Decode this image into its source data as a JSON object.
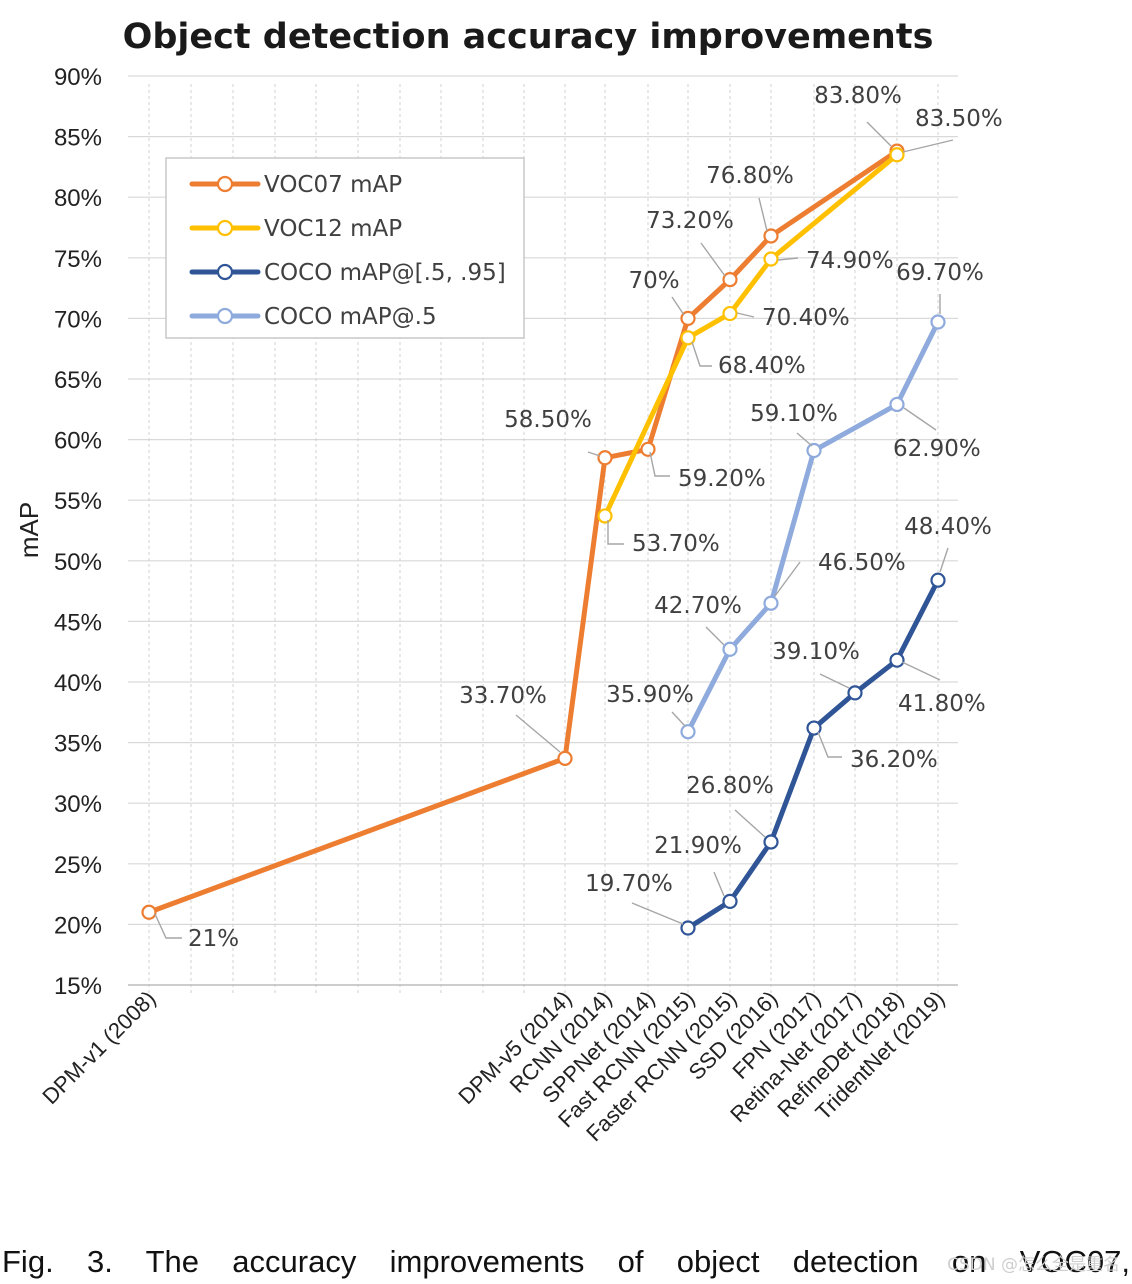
{
  "chart_data": {
    "type": "line",
    "title": "Object detection accuracy improvements",
    "xlabel": "",
    "ylabel": "mAP",
    "ylim": [
      15,
      90
    ],
    "yticks": [
      "15%",
      "20%",
      "25%",
      "30%",
      "35%",
      "40%",
      "45%",
      "50%",
      "55%",
      "60%",
      "65%",
      "70%",
      "75%",
      "80%",
      "85%",
      "90%"
    ],
    "x_range": [
      2008,
      2019
    ],
    "categories": [
      {
        "label": "DPM-v1 (2008)",
        "x": 2008
      },
      {
        "label": "DPM-v5 (2014)",
        "x": 2018.0
      },
      {
        "label": "RCNN (2014)",
        "x": 2019.0
      },
      {
        "label": "SPPNet (2014)",
        "x": 2020.1
      },
      {
        "label": "Fast RCNN (2015)",
        "x": 2021.0
      },
      {
        "label": "Faster RCNN (2015)",
        "x": 2022.0
      },
      {
        "label": "SSD (2016)",
        "x": 2023.0
      },
      {
        "label": "FPN (2017)",
        "x": 2024.0
      },
      {
        "label": "Retina-Net (2017)",
        "x": 2025.0
      },
      {
        "label": "RefineDet (2018)",
        "x": 2026.0
      },
      {
        "label": "TridentNet (2019)",
        "x": 2027.0
      }
    ],
    "series": [
      {
        "name": "VOC07 mAP",
        "color": "#ED7D31",
        "points": [
          {
            "cat": 0,
            "value": 21.0,
            "label": "21%"
          },
          {
            "cat": 1,
            "value": 33.7,
            "label": "33.70%"
          },
          {
            "cat": 2,
            "value": 58.5,
            "label": "58.50%"
          },
          {
            "cat": 3,
            "value": 59.2,
            "label": "59.20%"
          },
          {
            "cat": 4,
            "value": 70.0,
            "label": "70%"
          },
          {
            "cat": 5,
            "value": 73.2,
            "label": "73.20%"
          },
          {
            "cat": 6,
            "value": 76.8,
            "label": "76.80%"
          },
          {
            "cat": 9,
            "value": 83.8,
            "label": "83.80%"
          }
        ]
      },
      {
        "name": "VOC12 mAP",
        "color": "#FFC000",
        "points": [
          {
            "cat": 2,
            "value": 53.7,
            "label": "53.70%"
          },
          {
            "cat": 4,
            "value": 68.4,
            "label": "68.40%"
          },
          {
            "cat": 5,
            "value": 70.4,
            "label": "70.40%"
          },
          {
            "cat": 6,
            "value": 74.9,
            "label": "74.90%"
          },
          {
            "cat": 9,
            "value": 83.5,
            "label": "83.50%"
          }
        ]
      },
      {
        "name": "COCO mAP@[.5, .95]",
        "color": "#2F5597",
        "points": [
          {
            "cat": 4,
            "value": 19.7,
            "label": "19.70%"
          },
          {
            "cat": 5,
            "value": 21.9,
            "label": "21.90%"
          },
          {
            "cat": 6,
            "value": 26.8,
            "label": "26.80%"
          },
          {
            "cat": 7,
            "value": 36.2,
            "label": "36.20%"
          },
          {
            "cat": 8,
            "value": 39.1,
            "label": "39.10%"
          },
          {
            "cat": 9,
            "value": 41.8,
            "label": "41.80%"
          },
          {
            "cat": 10,
            "value": 48.4,
            "label": "48.40%"
          }
        ]
      },
      {
        "name": "COCO mAP@.5",
        "color": "#8FAADC",
        "points": [
          {
            "cat": 4,
            "value": 35.9,
            "label": "35.90%"
          },
          {
            "cat": 5,
            "value": 42.7,
            "label": "42.70%"
          },
          {
            "cat": 6,
            "value": 46.5,
            "label": "46.50%"
          },
          {
            "cat": 7,
            "value": 59.1,
            "label": "59.10%"
          },
          {
            "cat": 9,
            "value": 62.9,
            "label": "62.90%"
          },
          {
            "cat": 10,
            "value": 69.7,
            "label": "69.70%"
          }
        ]
      }
    ],
    "legend_position": "top-left",
    "grid": true
  },
  "caption": "Fig. 3. The accuracy improvements of object detection on VOC07,",
  "watermark": "CSDN @怎么全是重名"
}
